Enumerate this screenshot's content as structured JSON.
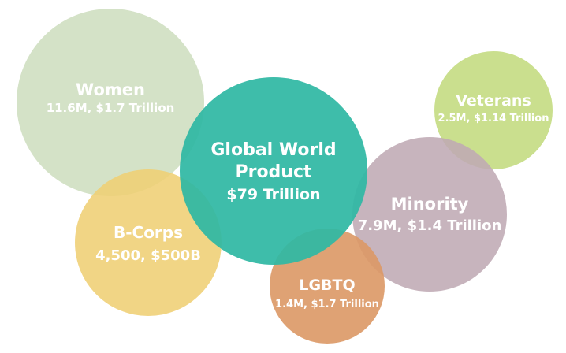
{
  "bubbles": {
    "women": {
      "title": "Women",
      "subtitle": "11.6M, $1.7 Trillion",
      "color": "#cfdfc1"
    },
    "b_corps": {
      "title": "B-Corps",
      "subtitle": "4,500, $500B",
      "color": "#efcf74"
    },
    "global": {
      "title_line1": "Global World",
      "title_line2": "Product",
      "subtitle": "$79 Trillion",
      "color": "#2fb8a4"
    },
    "veterans": {
      "title": "Veterans",
      "subtitle": "2.5M, $1.14 Trillion",
      "color": "#c4dc82"
    },
    "minority": {
      "title": "Minority",
      "subtitle": "7.9M, $1.4 Trillion",
      "color": "#bfaab4"
    },
    "lgbtq": {
      "title": "LGBTQ",
      "subtitle": "1.4M, $1.7 Trillion",
      "color": "#dc9865"
    }
  }
}
